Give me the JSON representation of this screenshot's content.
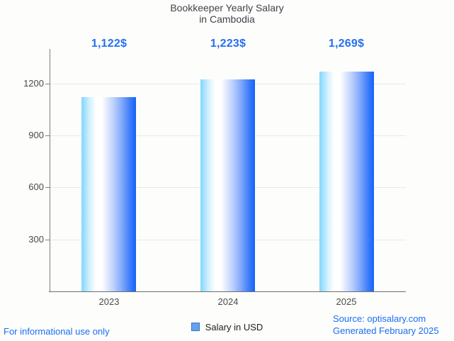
{
  "title": {
    "line1": "Bookkeeper Yearly Salary",
    "line2": "in Cambodia"
  },
  "chart_data": {
    "type": "bar",
    "title": "Bookkeeper Yearly Salary in Cambodia",
    "categories": [
      "2023",
      "2024",
      "2025"
    ],
    "values": [
      1122,
      1223,
      1269
    ],
    "value_labels": [
      "1,122$",
      "1,223$",
      "1,269$"
    ],
    "series": [
      {
        "name": "Salary in USD",
        "values": [
          1122,
          1223,
          1269
        ]
      }
    ],
    "xlabel": "",
    "ylabel": "",
    "ylim": [
      0,
      1400
    ],
    "yticks": [
      300,
      600,
      900,
      1200
    ],
    "grid": true,
    "legend_position": "bottom",
    "bar_gradient": [
      "#82d7fd",
      "#ffffff",
      "#b9cefd",
      "#1463fc"
    ]
  },
  "legend": {
    "label": "Salary in USD"
  },
  "footer": {
    "left": "For informational use only",
    "source": "Source: optisalary.com",
    "generated": "Generated February 2025"
  },
  "colors": {
    "accent_blue": "#1a6ef2",
    "value_label_blue": "#2470f3",
    "title_gray": "#3f4449",
    "axis_gray": "#808080",
    "grid_gray": "#e9e9e5",
    "legend_swatch": "#64a1f0",
    "background": "#fdfdfb"
  }
}
